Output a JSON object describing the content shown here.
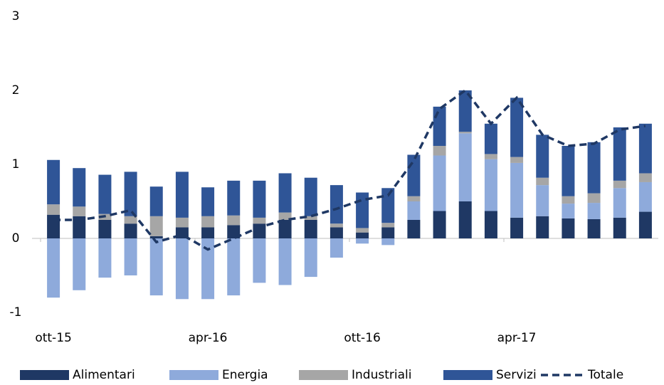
{
  "chart_data": {
    "type": "bar",
    "stacked": true,
    "categories": [
      "ott-15",
      null,
      null,
      null,
      null,
      null,
      "apr-16",
      null,
      null,
      null,
      null,
      null,
      "ott-16",
      null,
      null,
      null,
      null,
      null,
      "apr-17",
      null,
      null,
      null,
      null,
      null
    ],
    "series": [
      {
        "name": "Alimentari",
        "color": "#1f3864",
        "values": [
          0.32,
          0.3,
          0.25,
          0.2,
          0.03,
          0.15,
          0.15,
          0.18,
          0.2,
          0.25,
          0.25,
          0.15,
          0.08,
          0.15,
          0.25,
          0.37,
          0.5,
          0.37,
          0.28,
          0.3,
          0.27,
          0.26,
          0.28,
          0.36
        ]
      },
      {
        "name": "Energia",
        "color": "#8eaadb",
        "values": [
          -0.8,
          -0.7,
          -0.53,
          -0.5,
          -0.77,
          -0.82,
          -0.82,
          -0.77,
          -0.6,
          -0.63,
          -0.52,
          -0.26,
          -0.07,
          -0.09,
          0.25,
          0.75,
          0.92,
          0.7,
          0.74,
          0.42,
          0.2,
          0.22,
          0.4,
          0.4
        ]
      },
      {
        "name": "Industriali",
        "color": "#a6a6a6",
        "values": [
          0.14,
          0.13,
          0.08,
          0.1,
          0.27,
          0.13,
          0.15,
          0.13,
          0.08,
          0.1,
          0.05,
          0.05,
          0.06,
          0.06,
          0.07,
          0.13,
          0.02,
          0.07,
          0.08,
          0.1,
          0.1,
          0.13,
          0.1,
          0.12
        ]
      },
      {
        "name": "Servizi",
        "color": "#2f5597",
        "values": [
          0.6,
          0.52,
          0.53,
          0.6,
          0.4,
          0.62,
          0.39,
          0.47,
          0.5,
          0.53,
          0.52,
          0.52,
          0.48,
          0.47,
          0.56,
          0.53,
          0.56,
          0.41,
          0.8,
          0.58,
          0.68,
          0.69,
          0.72,
          0.67
        ]
      },
      {
        "name": "Totale",
        "type": "line",
        "color": "#1f3864",
        "values": [
          0.25,
          0.25,
          0.3,
          0.38,
          -0.05,
          0.05,
          -0.15,
          0.0,
          0.15,
          0.25,
          0.3,
          0.4,
          0.52,
          0.58,
          1.05,
          1.75,
          2.0,
          1.55,
          1.9,
          1.4,
          1.25,
          1.28,
          1.47,
          1.52
        ]
      }
    ],
    "ylim": [
      -1,
      3
    ],
    "yticks": [
      -1,
      0,
      1,
      2,
      3
    ],
    "grid": false,
    "legend": "bottom"
  }
}
